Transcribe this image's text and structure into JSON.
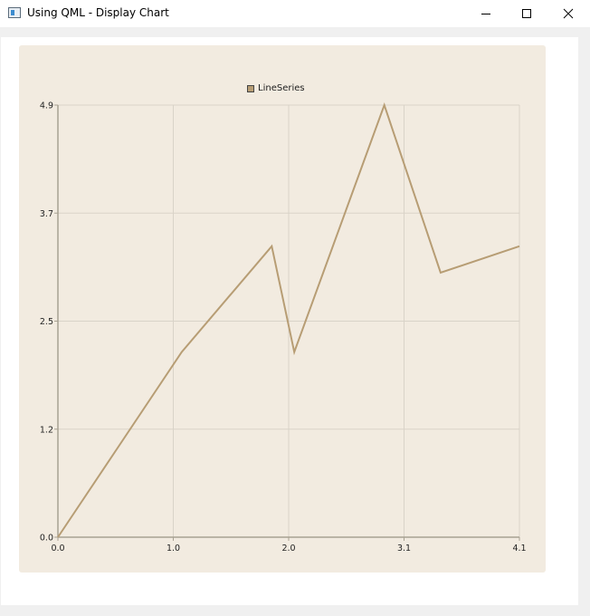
{
  "window": {
    "title": "Using QML - Display Chart",
    "controls": {
      "minimize_icon": "minimize-icon",
      "maximize_icon": "maximize-icon",
      "close_icon": "close-icon"
    }
  },
  "chart_data": {
    "type": "line",
    "title": "",
    "xlabel": "",
    "ylabel": "",
    "legend": "top-center",
    "grid": true,
    "xlim": [
      0.0,
      4.1
    ],
    "ylim": [
      0.0,
      4.9
    ],
    "x_ticks": [
      "0.0",
      "1.0",
      "2.0",
      "3.1",
      "4.1"
    ],
    "y_ticks": [
      "0.0",
      "1.2",
      "2.5",
      "3.7",
      "4.9"
    ],
    "series": [
      {
        "name": "LineSeries",
        "color": "#b79d74",
        "x": [
          0.0,
          1.1,
          1.9,
          2.1,
          2.9,
          3.4,
          4.1
        ],
        "y": [
          0.0,
          2.1,
          3.3,
          2.1,
          4.9,
          3.0,
          3.3
        ]
      }
    ],
    "colors": {
      "background": "#f2ebe0",
      "grid": "#d9d3c8",
      "axis": "#a8a292"
    }
  }
}
